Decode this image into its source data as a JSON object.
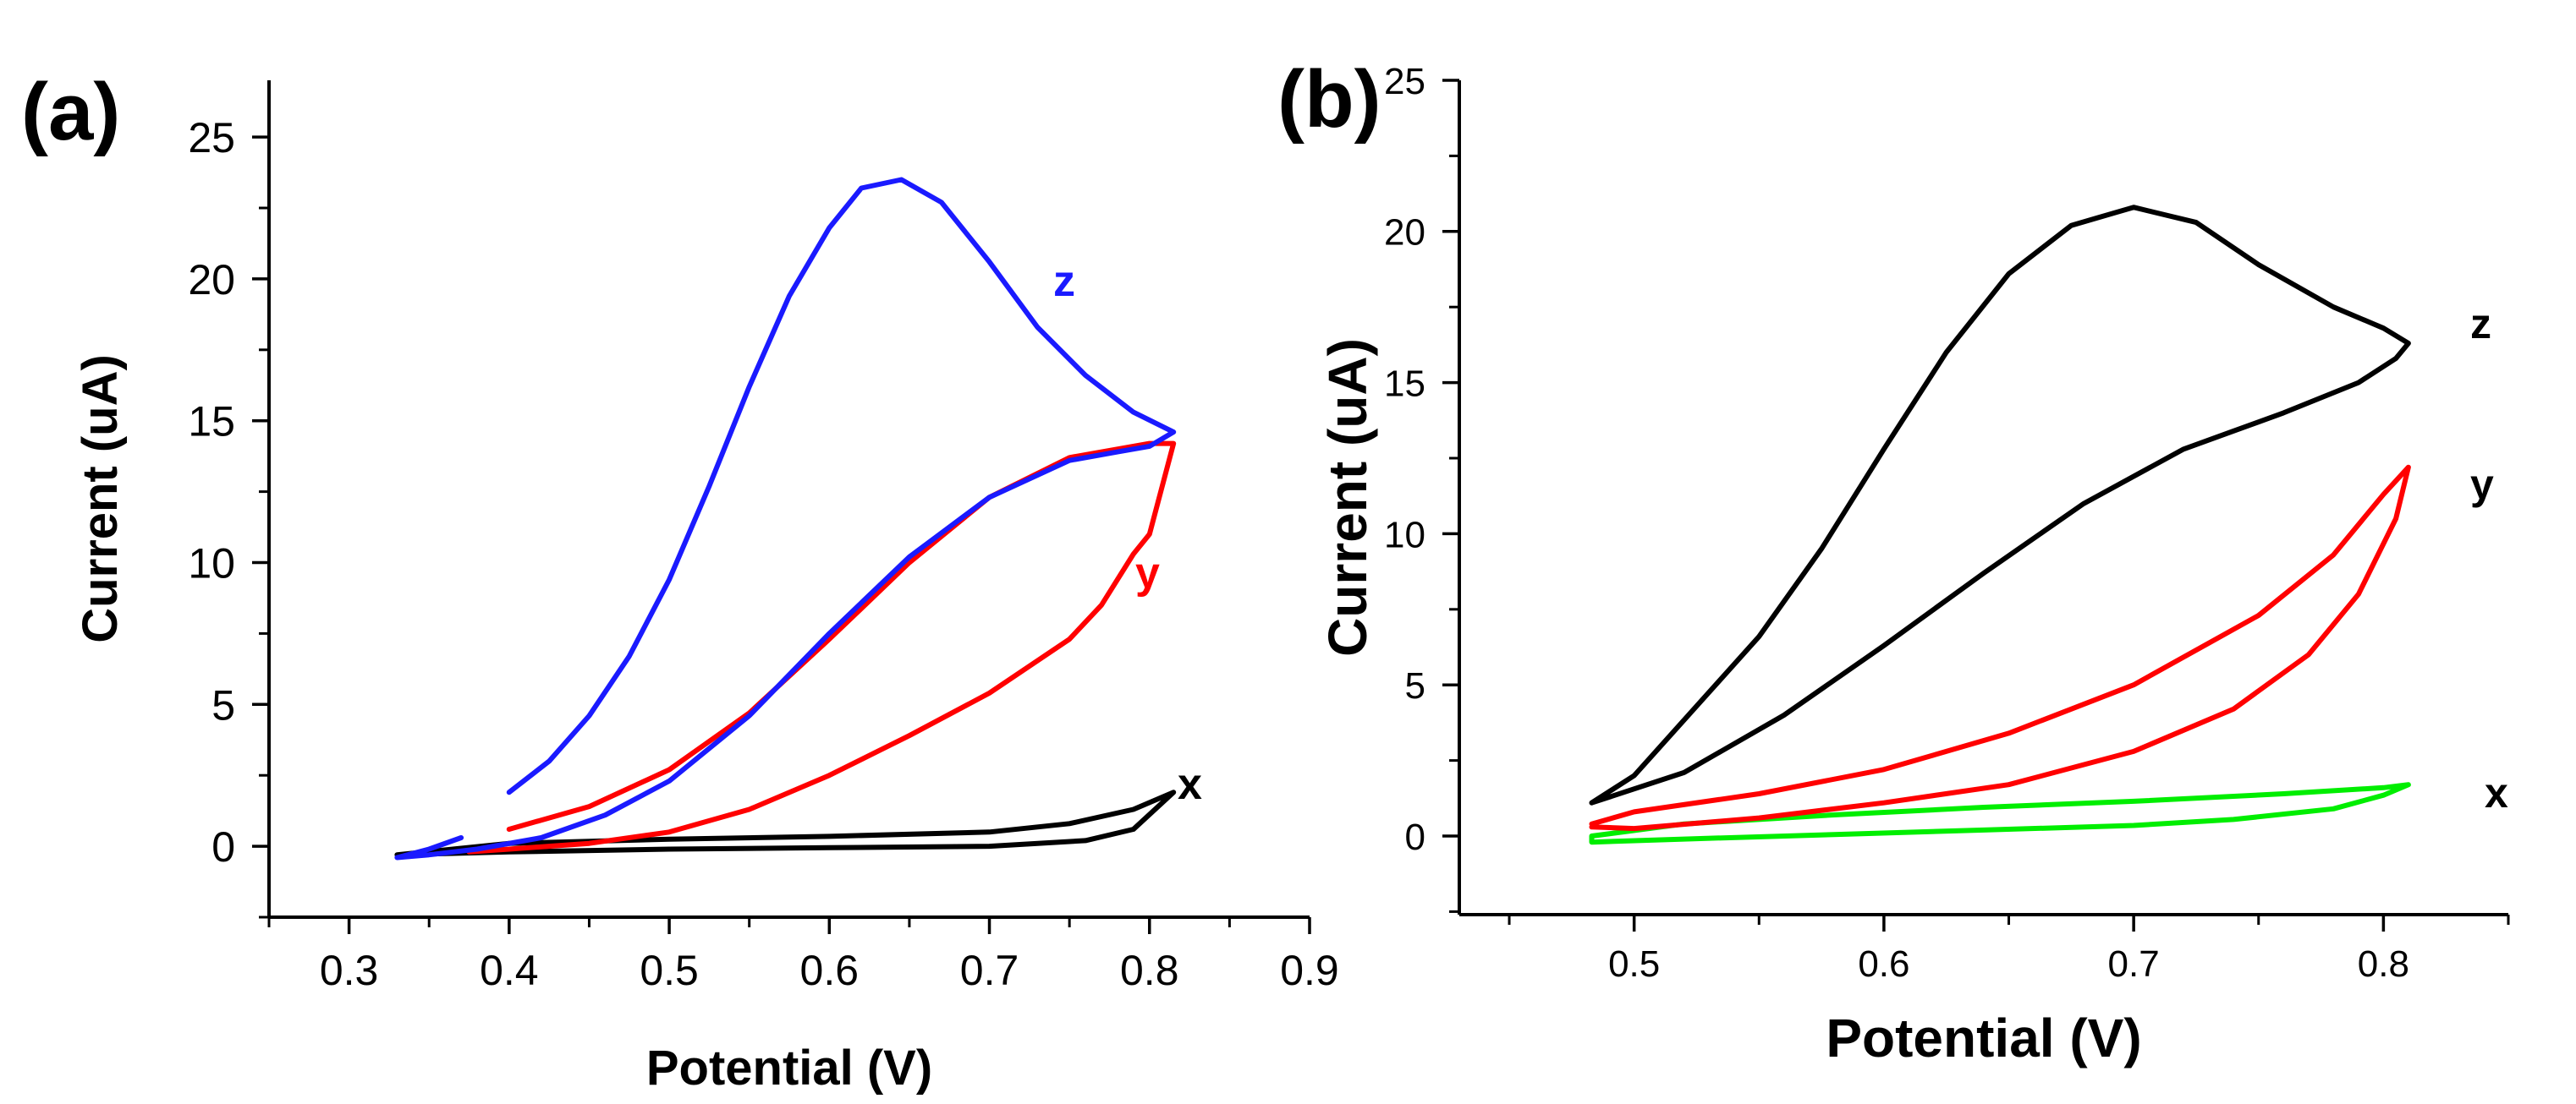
{
  "chart_data": [
    {
      "type": "line",
      "panel_label": "(a)",
      "xlabel": "Potential (V)",
      "ylabel": "Current (uA)",
      "xlim": [
        0.25,
        0.9
      ],
      "ylim": [
        -2.5,
        27
      ],
      "xticks": [
        0.3,
        0.4,
        0.5,
        0.6,
        0.7,
        0.8,
        0.9
      ],
      "xtick_labels": [
        "0.3",
        "0.4",
        "0.5",
        "0.6",
        "0.7",
        "0.8",
        "0.9"
      ],
      "yticks": [
        0,
        5,
        10,
        15,
        20,
        25
      ],
      "ytick_labels": [
        "0",
        "5",
        "10",
        "15",
        "20",
        "25"
      ],
      "series": [
        {
          "name": "x",
          "color": "#000000",
          "points": [
            [
              0.33,
              -0.3
            ],
            [
              0.4,
              -0.2
            ],
            [
              0.5,
              -0.1
            ],
            [
              0.6,
              -0.05
            ],
            [
              0.7,
              0.0
            ],
            [
              0.76,
              0.2
            ],
            [
              0.79,
              0.6
            ],
            [
              0.815,
              1.9
            ],
            [
              0.79,
              1.3
            ],
            [
              0.75,
              0.8
            ],
            [
              0.7,
              0.5
            ],
            [
              0.6,
              0.35
            ],
            [
              0.5,
              0.25
            ],
            [
              0.4,
              0.1
            ],
            [
              0.33,
              -0.3
            ]
          ]
        },
        {
          "name": "y",
          "color": "#ff0000",
          "points": [
            [
              0.4,
              0.6
            ],
            [
              0.45,
              1.4
            ],
            [
              0.5,
              2.7
            ],
            [
              0.55,
              4.7
            ],
            [
              0.6,
              7.3
            ],
            [
              0.65,
              10.0
            ],
            [
              0.7,
              12.3
            ],
            [
              0.75,
              13.7
            ],
            [
              0.8,
              14.2
            ],
            [
              0.815,
              14.2
            ],
            [
              0.8,
              11.0
            ],
            [
              0.79,
              10.3
            ],
            [
              0.77,
              8.5
            ],
            [
              0.75,
              7.3
            ],
            [
              0.7,
              5.4
            ],
            [
              0.65,
              3.9
            ],
            [
              0.6,
              2.5
            ],
            [
              0.55,
              1.3
            ],
            [
              0.5,
              0.5
            ],
            [
              0.45,
              0.1
            ],
            [
              0.4,
              -0.1
            ],
            [
              0.375,
              -0.2
            ]
          ]
        },
        {
          "name": "z",
          "color": "#1a1aff",
          "points": [
            [
              0.4,
              1.9
            ],
            [
              0.425,
              3.0
            ],
            [
              0.45,
              4.6
            ],
            [
              0.475,
              6.7
            ],
            [
              0.5,
              9.4
            ],
            [
              0.525,
              12.7
            ],
            [
              0.55,
              16.2
            ],
            [
              0.575,
              19.4
            ],
            [
              0.6,
              21.8
            ],
            [
              0.62,
              23.2
            ],
            [
              0.645,
              23.5
            ],
            [
              0.67,
              22.7
            ],
            [
              0.7,
              20.6
            ],
            [
              0.73,
              18.3
            ],
            [
              0.76,
              16.6
            ],
            [
              0.79,
              15.3
            ],
            [
              0.815,
              14.6
            ],
            [
              0.8,
              14.1
            ],
            [
              0.78,
              13.9
            ],
            [
              0.75,
              13.6
            ],
            [
              0.7,
              12.3
            ],
            [
              0.65,
              10.2
            ],
            [
              0.6,
              7.5
            ],
            [
              0.55,
              4.6
            ],
            [
              0.5,
              2.3
            ],
            [
              0.46,
              1.1
            ],
            [
              0.42,
              0.3
            ],
            [
              0.38,
              -0.1
            ],
            [
              0.35,
              -0.3
            ],
            [
              0.33,
              -0.4
            ],
            [
              0.35,
              -0.1
            ],
            [
              0.37,
              0.3
            ]
          ]
        }
      ]
    },
    {
      "type": "line",
      "panel_label": "(b)",
      "xlabel": "Potential (V)",
      "ylabel": "Current (uA)",
      "xlim": [
        0.43,
        0.85
      ],
      "ylim": [
        -2.6,
        25
      ],
      "xticks": [
        0.5,
        0.6,
        0.7,
        0.8
      ],
      "xtick_labels": [
        "0.5",
        "0.6",
        "0.7",
        "0.8"
      ],
      "yticks": [
        0,
        5,
        10,
        15,
        20,
        25
      ],
      "ytick_labels": [
        "0",
        "5",
        "10",
        "15",
        "20",
        "25"
      ],
      "series": [
        {
          "name": "x",
          "color": "#00ee00",
          "points": [
            [
              0.483,
              0.0
            ],
            [
              0.52,
              0.4
            ],
            [
              0.58,
              0.7
            ],
            [
              0.64,
              0.95
            ],
            [
              0.7,
              1.15
            ],
            [
              0.76,
              1.4
            ],
            [
              0.8,
              1.6
            ],
            [
              0.81,
              1.7
            ],
            [
              0.8,
              1.35
            ],
            [
              0.78,
              0.9
            ],
            [
              0.74,
              0.55
            ],
            [
              0.7,
              0.35
            ],
            [
              0.64,
              0.2
            ],
            [
              0.58,
              0.05
            ],
            [
              0.52,
              -0.1
            ],
            [
              0.483,
              -0.2
            ],
            [
              0.483,
              0.0
            ]
          ]
        },
        {
          "name": "y",
          "color": "#ff0000",
          "points": [
            [
              0.483,
              0.4
            ],
            [
              0.5,
              0.8
            ],
            [
              0.55,
              1.4
            ],
            [
              0.6,
              2.2
            ],
            [
              0.65,
              3.4
            ],
            [
              0.7,
              5.0
            ],
            [
              0.75,
              7.3
            ],
            [
              0.78,
              9.3
            ],
            [
              0.8,
              11.3
            ],
            [
              0.81,
              12.2
            ],
            [
              0.805,
              10.5
            ],
            [
              0.79,
              8.0
            ],
            [
              0.77,
              6.0
            ],
            [
              0.74,
              4.2
            ],
            [
              0.7,
              2.8
            ],
            [
              0.65,
              1.7
            ],
            [
              0.6,
              1.1
            ],
            [
              0.55,
              0.6
            ],
            [
              0.5,
              0.25
            ],
            [
              0.483,
              0.3
            ]
          ]
        },
        {
          "name": "z",
          "color": "#000000",
          "points": [
            [
              0.483,
              1.1
            ],
            [
              0.5,
              2.0
            ],
            [
              0.525,
              4.3
            ],
            [
              0.55,
              6.6
            ],
            [
              0.575,
              9.5
            ],
            [
              0.6,
              12.8
            ],
            [
              0.625,
              16.0
            ],
            [
              0.65,
              18.6
            ],
            [
              0.675,
              20.2
            ],
            [
              0.7,
              20.8
            ],
            [
              0.725,
              20.3
            ],
            [
              0.75,
              18.9
            ],
            [
              0.78,
              17.5
            ],
            [
              0.8,
              16.8
            ],
            [
              0.81,
              16.3
            ],
            [
              0.805,
              15.8
            ],
            [
              0.79,
              15.0
            ],
            [
              0.76,
              14.0
            ],
            [
              0.72,
              12.8
            ],
            [
              0.68,
              11.0
            ],
            [
              0.64,
              8.7
            ],
            [
              0.6,
              6.3
            ],
            [
              0.56,
              4.0
            ],
            [
              0.52,
              2.1
            ],
            [
              0.483,
              1.1
            ]
          ]
        }
      ]
    }
  ]
}
